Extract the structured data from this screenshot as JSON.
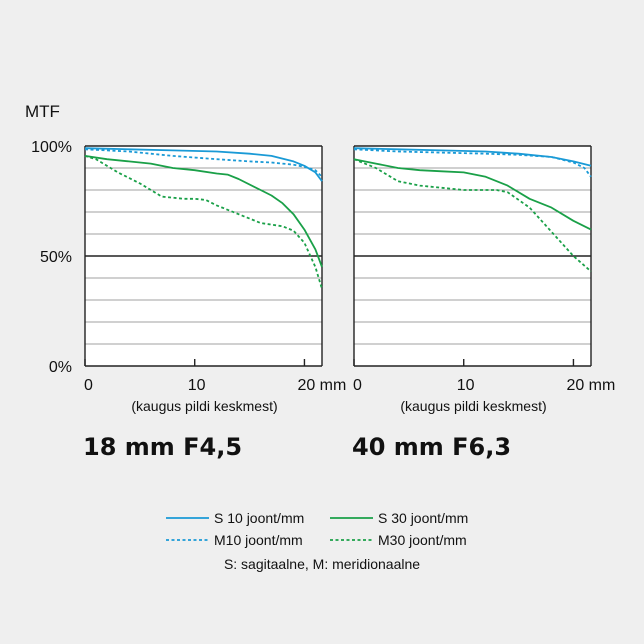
{
  "y_axis_label": "MTF",
  "legend": {
    "items": [
      {
        "label": "S 10 joont/mm",
        "color": "#1a9ad6",
        "dash": false
      },
      {
        "label": "S 30 joont/mm",
        "color": "#1aa048",
        "dash": false
      },
      {
        "label": "M10 joont/mm",
        "color": "#1a9ad6",
        "dash": true
      },
      {
        "label": "M30 joont/mm",
        "color": "#1aa048",
        "dash": true
      }
    ],
    "note": "S: sagitaalne, M: meridionaalne"
  },
  "chart_data": [
    {
      "type": "line",
      "title": "18 mm F4,5",
      "xlabel": "(kaugus pildi keskmest)",
      "ylabel": "MTF",
      "xlim": [
        0,
        21.6
      ],
      "ylim": [
        0,
        100
      ],
      "x_ticks": [
        "0",
        "10",
        "20 mm"
      ],
      "x_tick_values": [
        0,
        10,
        20
      ],
      "y_ticks": [
        "0%",
        "50%",
        "100%"
      ],
      "y_tick_values": [
        0,
        50,
        100
      ],
      "grid": true,
      "series": [
        {
          "name": "S 10 joont/mm",
          "color": "#1a9ad6",
          "dash": false,
          "x": [
            0,
            4,
            8,
            12,
            15,
            17,
            19,
            20,
            21,
            21.6
          ],
          "y": [
            99,
            98.5,
            98,
            97.5,
            96.5,
            95.5,
            93,
            91,
            88,
            84
          ]
        },
        {
          "name": "M10 joont/mm",
          "color": "#1a9ad6",
          "dash": true,
          "x": [
            0,
            4,
            8,
            12,
            15,
            17,
            19,
            20,
            21,
            21.6
          ],
          "y": [
            98.5,
            97.5,
            95.5,
            94,
            93,
            92.5,
            91.5,
            90.5,
            89,
            86
          ]
        },
        {
          "name": "S 30 joont/mm",
          "color": "#1aa048",
          "dash": false,
          "x": [
            0,
            2,
            4,
            6,
            8,
            10,
            12,
            13,
            14,
            16,
            17,
            18,
            19,
            20,
            21,
            21.6
          ],
          "y": [
            95.5,
            94,
            93,
            92,
            90,
            89,
            87.5,
            87,
            85,
            80,
            77.5,
            74,
            69,
            62,
            53,
            45
          ]
        },
        {
          "name": "M30 joont/mm",
          "color": "#1aa048",
          "dash": true,
          "x": [
            0,
            1,
            3,
            5,
            7,
            9,
            10,
            11,
            12,
            14,
            16,
            18,
            19,
            20,
            21,
            21.6
          ],
          "y": [
            95.5,
            94,
            88,
            83,
            77,
            76,
            76,
            75.5,
            73,
            69,
            65,
            63.5,
            61.5,
            56,
            45,
            35
          ]
        }
      ]
    },
    {
      "type": "line",
      "title": "40 mm F6,3",
      "xlabel": "(kaugus pildi keskmest)",
      "ylabel": "MTF",
      "xlim": [
        0,
        21.6
      ],
      "ylim": [
        0,
        100
      ],
      "x_ticks": [
        "0",
        "10",
        "20 mm"
      ],
      "x_tick_values": [
        0,
        10,
        20
      ],
      "y_ticks": [
        "0%",
        "50%",
        "100%"
      ],
      "y_tick_values": [
        0,
        50,
        100
      ],
      "grid": true,
      "series": [
        {
          "name": "S 10 joont/mm",
          "color": "#1a9ad6",
          "dash": false,
          "x": [
            0,
            4,
            8,
            12,
            15,
            18,
            20,
            21.6
          ],
          "y": [
            99,
            98.5,
            98,
            97.5,
            96.5,
            95,
            93,
            91
          ]
        },
        {
          "name": "M10 joont/mm",
          "color": "#1a9ad6",
          "dash": true,
          "x": [
            0,
            4,
            8,
            12,
            15,
            18,
            20,
            21,
            21.6
          ],
          "y": [
            98.5,
            97.5,
            97,
            96.5,
            96,
            95,
            92.5,
            90,
            86
          ]
        },
        {
          "name": "S 30 joont/mm",
          "color": "#1aa048",
          "dash": false,
          "x": [
            0,
            2,
            4,
            6,
            8,
            10,
            12,
            14,
            16,
            18,
            20,
            21.6
          ],
          "y": [
            94,
            92,
            90,
            89,
            88.5,
            88,
            86,
            82,
            76,
            72,
            66,
            62
          ]
        },
        {
          "name": "M30 joont/mm",
          "color": "#1aa048",
          "dash": true,
          "x": [
            0,
            2,
            4,
            6,
            8,
            10,
            12,
            13,
            14,
            16,
            18,
            20,
            21.6
          ],
          "y": [
            94,
            90,
            84,
            82,
            81,
            80,
            80,
            80,
            79,
            72,
            61,
            50,
            43
          ]
        }
      ]
    }
  ]
}
